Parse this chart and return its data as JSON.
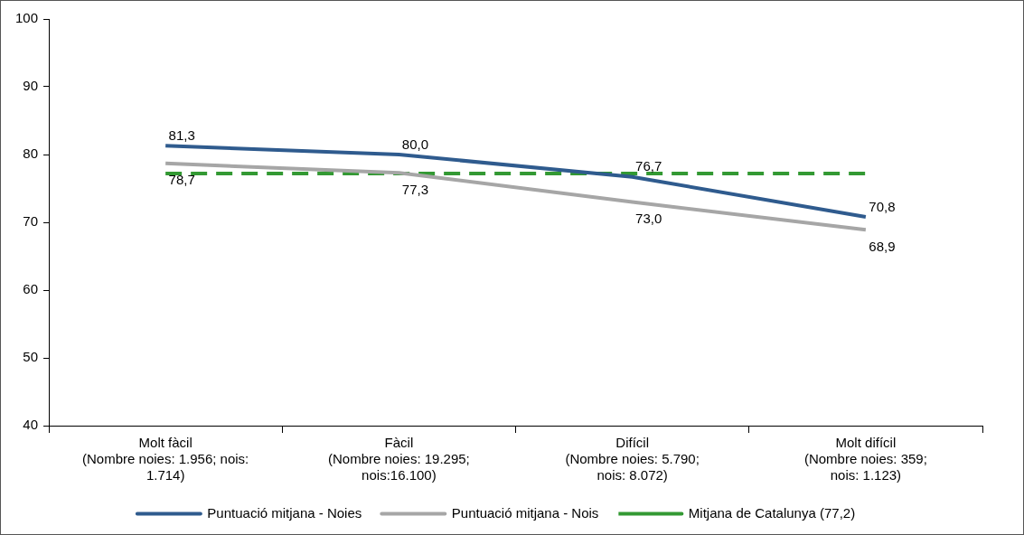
{
  "chart_data": {
    "type": "line",
    "categories": [
      "Molt fàcil\n(Nombre noies: 1.956; nois:\n1.714)",
      "Fàcil\n(Nombre noies: 19.295;\nnois:16.100)",
      "Difícil\n(Nombre noies: 5.790;\nnois: 8.072)",
      "Molt difícil\n(Nombre noies: 359;\nnois: 1.123)"
    ],
    "series": [
      {
        "name": "Puntuació mitjana - Noies",
        "color": "#2f5b8e",
        "values": [
          81.3,
          80.0,
          76.7,
          70.8
        ],
        "value_labels": [
          "81,3",
          "80,0",
          "76,7",
          "70,8"
        ]
      },
      {
        "name": "Puntuació mitjana - Nois",
        "color": "#a6a6a6",
        "values": [
          78.7,
          77.3,
          73.0,
          68.9
        ],
        "value_labels": [
          "78,7",
          "77,3",
          "73,0",
          "68,9"
        ]
      },
      {
        "name": "Mitjana de Catalunya (77,2)",
        "color": "#339933",
        "values": [
          77.2,
          77.2,
          77.2,
          77.2
        ],
        "line_style": "dashed"
      }
    ],
    "ylim": [
      40,
      100
    ],
    "yticks": [
      40,
      50,
      60,
      70,
      80,
      90,
      100
    ],
    "grid": false,
    "legend": "bottom",
    "marker": "none"
  }
}
